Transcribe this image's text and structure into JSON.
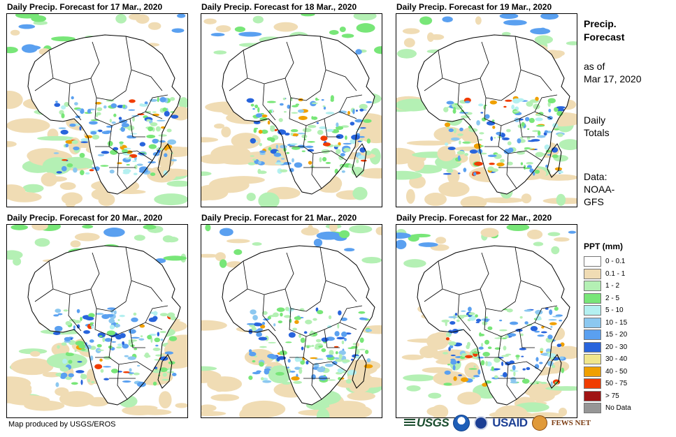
{
  "panels": [
    {
      "title": "Daily Precip. Forecast for 17 Mar., 2020",
      "date": "17 Mar."
    },
    {
      "title": "Daily Precip. Forecast for 18 Mar., 2020",
      "date": "18 Mar."
    },
    {
      "title": "Daily Precip. Forecast for 19 Mar., 2020",
      "date": "19 Mar."
    },
    {
      "title": "Daily Precip. Forecast for 20 Mar., 2020",
      "date": "20 Mar."
    },
    {
      "title": "Daily Precip. Forecast for 21 Mar., 2020",
      "date": "21 Mar."
    },
    {
      "title": "Daily Precip. Forecast for 22 Mar., 2020",
      "date": "22 Mar."
    }
  ],
  "side": {
    "title_line1": "Precip.",
    "title_line2": "Forecast",
    "asof_line1": "as of",
    "asof_line2": "Mar 17, 2020",
    "totals_line1": "Daily",
    "totals_line2": "Totals",
    "data_line1": "Data:",
    "data_line2": "NOAA-",
    "data_line3": "GFS"
  },
  "legend": {
    "title": "PPT (mm)",
    "items": [
      {
        "label": "0 - 0.1",
        "color": "#ffffff"
      },
      {
        "label": "0.1 - 1",
        "color": "#f0dcb4"
      },
      {
        "label": "1 - 2",
        "color": "#b4f0b4"
      },
      {
        "label": "2 - 5",
        "color": "#78e678"
      },
      {
        "label": "5 - 10",
        "color": "#b4f0f0"
      },
      {
        "label": "10 - 15",
        "color": "#8cc8f0"
      },
      {
        "label": "15 - 20",
        "color": "#5aa0f0"
      },
      {
        "label": "20 - 30",
        "color": "#2864dc"
      },
      {
        "label": "30 - 40",
        "color": "#f0e68c"
      },
      {
        "label": "40 - 50",
        "color": "#f0a000"
      },
      {
        "label": "50 - 75",
        "color": "#f03c00"
      },
      {
        "label": "> 75",
        "color": "#a01414"
      },
      {
        "label": "No Data",
        "color": "#969696"
      }
    ]
  },
  "credit": "Map produced by USGS/EROS",
  "logos": {
    "usgs": "USGS",
    "usaid": "USAID",
    "fews": "FEWS NET"
  }
}
